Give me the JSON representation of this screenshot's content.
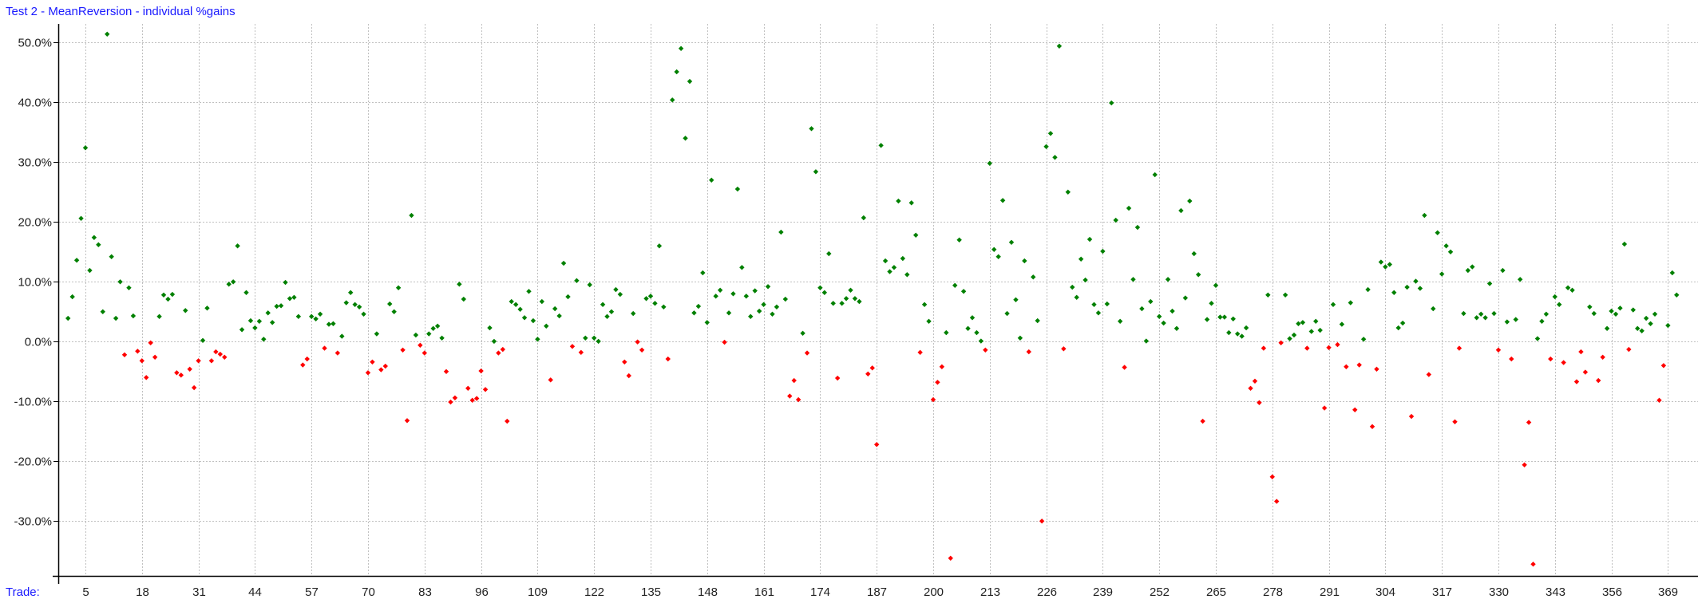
{
  "title": "Test 2 - MeanReversion - individual %gains",
  "x_axis_label": "Trade:",
  "colors": {
    "gain": "#008000",
    "loss": "#ff0000",
    "title": "#1a1aff",
    "grid": "#c0c0c0",
    "axis": "#000000"
  },
  "chart_data": {
    "type": "scatter",
    "title": "Test 2 - MeanReversion - individual %gains",
    "xlabel": "Trade:",
    "ylabel": "",
    "ylim": [
      -39,
      52
    ],
    "grid": true,
    "legend": "none",
    "y_ticks": [
      "50.0%",
      "40.0%",
      "30.0%",
      "20.0%",
      "10.0%",
      "0.0%",
      "-10.0%",
      "-20.0%",
      "-30.0%"
    ],
    "y_tick_values": [
      50,
      40,
      30,
      20,
      10,
      0,
      -10,
      -20,
      -30
    ],
    "x_ticks": [
      "5",
      "18",
      "31",
      "44",
      "57",
      "70",
      "83",
      "96",
      "109",
      "122",
      "135",
      "148",
      "161",
      "174",
      "187",
      "200",
      "213",
      "226",
      "239",
      "252",
      "265",
      "278",
      "291",
      "304",
      "317",
      "330",
      "343",
      "356",
      "369"
    ],
    "x_tick_values": [
      5,
      18,
      31,
      44,
      57,
      70,
      83,
      96,
      109,
      122,
      135,
      148,
      161,
      174,
      187,
      200,
      213,
      226,
      239,
      252,
      265,
      278,
      291,
      304,
      317,
      330,
      343,
      356,
      369
    ],
    "series": [
      {
        "name": "individual %gains",
        "color_rule": "green if >= 0 else red",
        "x_start": 1,
        "values": [
          3.9,
          7.5,
          13.6,
          20.6,
          32.4,
          11.9,
          17.4,
          16.2,
          5.0,
          51.4,
          14.2,
          3.9,
          10.0,
          -2.2,
          9.0,
          4.3,
          -1.6,
          -3.2,
          -6.0,
          -0.2,
          -2.6,
          4.2,
          7.8,
          7.1,
          7.9,
          -5.2,
          -5.6,
          5.2,
          -4.6,
          -7.7,
          -3.2,
          0.2,
          5.6,
          -3.2,
          -1.7,
          -2.1,
          -2.6,
          9.6,
          10.0,
          16.0,
          2.0,
          8.2,
          3.5,
          2.3,
          3.4,
          0.4,
          4.8,
          3.2,
          5.9,
          6.0,
          9.9,
          7.2,
          7.4,
          4.2,
          -3.9,
          -2.9,
          4.2,
          3.8,
          4.6,
          -1.1,
          2.9,
          3.0,
          -1.9,
          0.9,
          6.5,
          8.2,
          6.2,
          5.8,
          4.6,
          -5.2,
          -3.4,
          1.3,
          -4.7,
          -4.1,
          6.3,
          5.0,
          9.0,
          -1.4,
          -13.2,
          21.1,
          1.1,
          -0.6,
          -1.9,
          1.3,
          2.2,
          2.6,
          0.6,
          -5.0,
          -10.1,
          -9.4,
          9.6,
          7.1,
          -7.8,
          -9.8,
          -9.5,
          -4.9,
          -8.0,
          2.3,
          0.05,
          -1.9,
          -1.3,
          -13.3,
          6.7,
          6.2,
          5.4,
          4.0,
          8.4,
          3.5,
          0.4,
          6.7,
          2.6,
          -6.4,
          5.5,
          4.3,
          13.1,
          7.5,
          -0.8,
          10.2,
          -1.8,
          0.6,
          9.5,
          0.6,
          0.05,
          6.2,
          4.2,
          5.0,
          8.7,
          7.9,
          -3.4,
          -5.7,
          4.7,
          -0.05,
          -1.4,
          7.2,
          7.6,
          6.4,
          16.0,
          5.8,
          -2.9,
          40.4,
          45.1,
          49.0,
          34.0,
          43.5,
          4.8,
          5.9,
          11.5,
          3.2,
          27.0,
          7.6,
          8.6,
          -0.1,
          4.8,
          8.0,
          25.5,
          12.4,
          7.6,
          4.2,
          8.5,
          5.1,
          6.2,
          9.2,
          4.6,
          5.8,
          18.3,
          7.1,
          -9.1,
          -6.5,
          -9.7,
          1.4,
          -1.9,
          35.6,
          28.4,
          9.0,
          8.2,
          14.7,
          6.4,
          -6.1,
          6.4,
          7.2,
          8.6,
          7.2,
          6.7,
          20.7,
          -5.4,
          -4.4,
          -17.2,
          32.8,
          13.5,
          11.7,
          12.4,
          23.5,
          13.9,
          11.2,
          23.2,
          17.8,
          -1.8,
          6.2,
          3.4,
          -9.7,
          -6.8,
          -4.2,
          1.5,
          -36.2,
          9.4,
          17.0,
          8.4,
          2.2,
          4.0,
          1.5,
          0.1,
          -1.4,
          29.8,
          15.4,
          14.2,
          23.6,
          4.7,
          16.6,
          7.0,
          0.6,
          13.5,
          -1.7,
          10.8,
          3.5,
          -30.0,
          32.6,
          34.8,
          30.8,
          49.4,
          -1.2,
          25.0,
          9.1,
          7.4,
          13.8,
          10.3,
          17.1,
          6.2,
          4.8,
          15.1,
          6.3,
          39.9,
          20.3,
          3.4,
          -4.3,
          22.3,
          10.4,
          19.1,
          5.5,
          0.1,
          6.7,
          27.9,
          4.2,
          3.1,
          10.4,
          5.1,
          2.2,
          21.9,
          7.3,
          23.5,
          14.7,
          11.2,
          -13.3,
          3.7,
          6.4,
          9.4,
          4.1,
          4.1,
          1.5,
          3.8,
          1.3,
          0.9,
          2.3,
          -7.8,
          -6.6,
          -10.2,
          -1.1,
          7.8,
          -22.6,
          -26.7,
          -0.2,
          7.8,
          0.5,
          1.1,
          3.0,
          3.2,
          -1.1,
          1.7,
          3.4,
          1.9,
          -11.1,
          -1.0,
          6.2,
          -0.5,
          2.9,
          -4.2,
          6.5,
          -11.4,
          -3.9,
          0.4,
          8.7,
          -14.2,
          -4.6,
          13.3,
          12.5,
          12.9,
          8.2,
          2.3,
          3.1,
          9.1,
          -12.5,
          10.1,
          8.9,
          21.1,
          -5.5,
          5.5,
          18.2,
          11.3,
          16.0,
          15.0,
          -13.4,
          -1.1,
          4.7,
          11.9,
          12.5,
          4.0,
          4.6,
          4.0,
          9.7,
          4.7,
          -1.4,
          11.9,
          3.3,
          -2.9,
          3.7,
          10.4,
          -20.6,
          -13.5,
          -37.2,
          0.5,
          3.4,
          4.6,
          -2.9,
          7.5,
          6.2,
          -3.5,
          9.0,
          8.6,
          -6.7,
          -1.7,
          -5.1,
          5.8,
          4.7,
          -6.5,
          -2.6,
          2.2,
          5.1,
          4.6,
          5.6,
          16.3,
          -1.3,
          5.3,
          2.2,
          1.8,
          3.9,
          3.0,
          4.6,
          -9.8,
          -4.0,
          2.7,
          11.5,
          7.8
        ]
      }
    ]
  }
}
